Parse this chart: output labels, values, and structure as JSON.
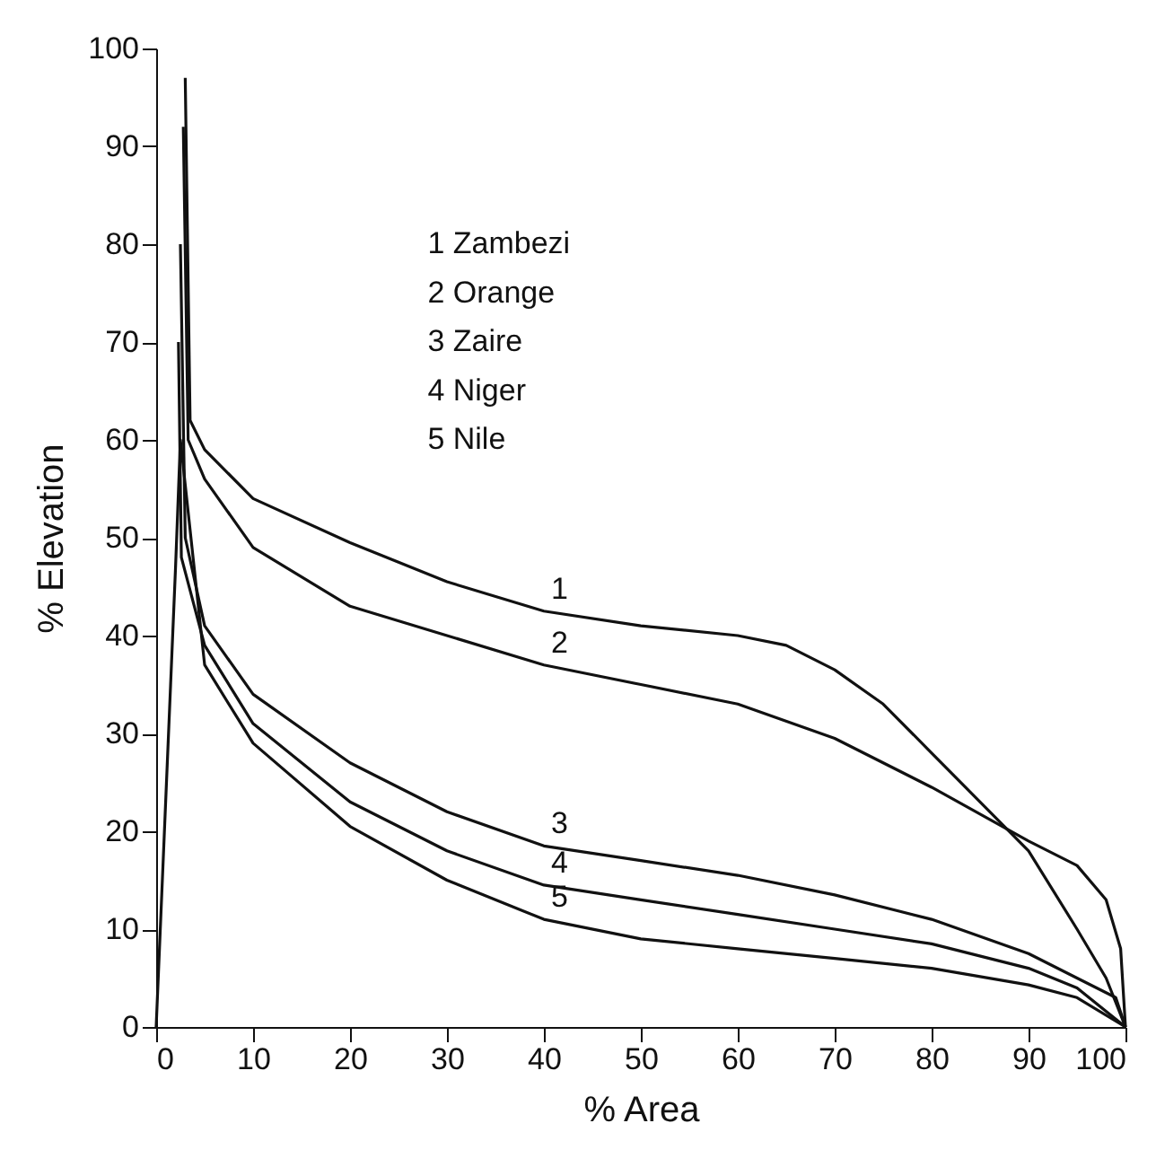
{
  "chart_data": {
    "type": "line",
    "xlabel": "% Area",
    "ylabel": "% Elevation",
    "xlim": [
      0,
      100
    ],
    "ylim": [
      0,
      100
    ],
    "xticks": [
      0,
      10,
      20,
      30,
      40,
      50,
      60,
      70,
      80,
      90,
      100
    ],
    "yticks": [
      0,
      10,
      20,
      30,
      40,
      50,
      60,
      70,
      80,
      90,
      100
    ],
    "grid": false,
    "marker": "none",
    "line_style": "solid",
    "series": [
      {
        "name": "1",
        "color": "#111111",
        "x": [
          3,
          3.5,
          5,
          10,
          20,
          30,
          40,
          50,
          60,
          65,
          70,
          75,
          80,
          85,
          90,
          95,
          98,
          100
        ],
        "values": [
          97,
          62,
          59,
          54,
          49.5,
          45.5,
          42.5,
          41,
          40,
          39,
          36.5,
          33,
          28,
          23,
          18,
          10,
          5,
          0
        ]
      },
      {
        "name": "2",
        "color": "#111111",
        "x": [
          2.8,
          3.3,
          5,
          10,
          20,
          30,
          40,
          50,
          60,
          70,
          80,
          90,
          95,
          98,
          99.5,
          100
        ],
        "values": [
          92,
          60,
          56,
          49,
          43,
          40,
          37,
          35,
          33,
          29.5,
          24.5,
          19,
          16.5,
          13,
          8,
          0
        ]
      },
      {
        "name": "3",
        "color": "#111111",
        "x": [
          2.5,
          3,
          5,
          10,
          20,
          30,
          40,
          50,
          60,
          70,
          80,
          90,
          95,
          99,
          100
        ],
        "values": [
          80,
          50,
          41,
          34,
          27,
          22,
          18.5,
          17,
          15.5,
          13.5,
          11,
          7.5,
          5,
          3,
          0
        ]
      },
      {
        "name": "4",
        "color": "#111111",
        "x": [
          2.3,
          2.6,
          5,
          10,
          20,
          30,
          40,
          50,
          60,
          70,
          80,
          90,
          95,
          100
        ],
        "values": [
          70,
          48,
          39,
          31,
          23,
          18,
          14.5,
          13,
          11.5,
          10,
          8.5,
          6,
          4,
          0
        ]
      },
      {
        "name": "5",
        "color": "#111111",
        "x": [
          0,
          2,
          2.5,
          5,
          10,
          20,
          30,
          40,
          50,
          60,
          70,
          80,
          90,
          95,
          100
        ],
        "values": [
          0,
          47,
          60,
          37,
          29,
          20.5,
          15,
          11,
          9,
          8,
          7,
          6,
          4.3,
          3,
          0
        ]
      }
    ],
    "annotations": [
      "1   Zambezi",
      "2   Orange",
      "3   Zaire",
      "4   Niger",
      "5   Nile"
    ]
  }
}
